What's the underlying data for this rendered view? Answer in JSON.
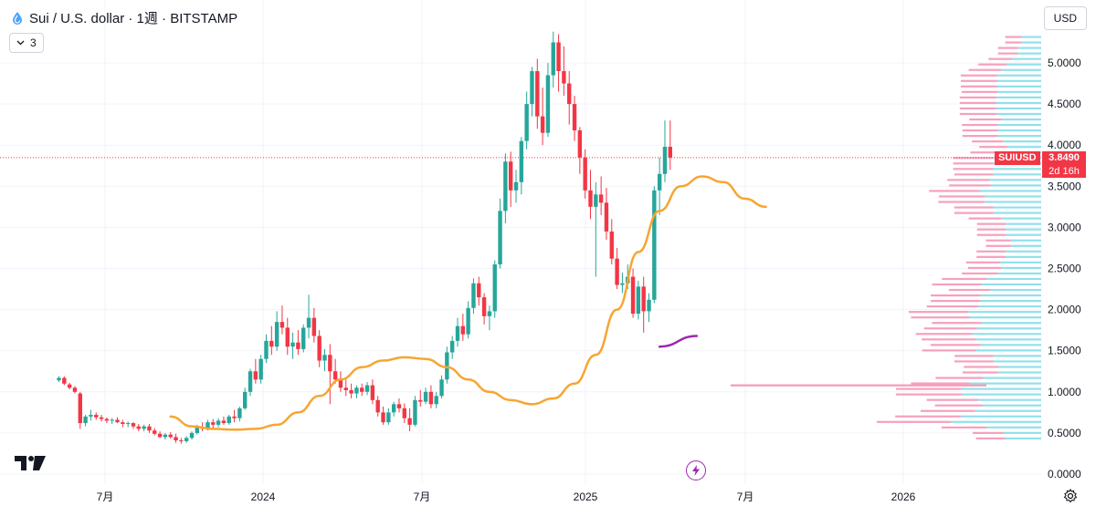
{
  "header": {
    "title": "Sui / U.S. dollar · 1週 · BITSTAMP",
    "indicator_count": "3"
  },
  "currency_button": "USD",
  "price_label": {
    "symbol": "SUIUSD",
    "price": "3.8490",
    "countdown": "2d 16h"
  },
  "colors": {
    "up": "#26a69a",
    "down": "#f23645",
    "ma": "#f7a532",
    "ma_short": "#9c27b0",
    "vp_up": "#7fdbe6",
    "vp_down": "#f48fb1",
    "price_line": "#f23645"
  },
  "chart_data": {
    "type": "candlestick",
    "y_axis": {
      "range": [
        0,
        5.35
      ],
      "ticks": [
        "0.0000",
        "0.5000",
        "1.0000",
        "1.5000",
        "2.0000",
        "2.5000",
        "3.0000",
        "3.5000",
        "4.0000",
        "4.5000",
        "5.0000"
      ]
    },
    "x_axis": {
      "labels": [
        "7月",
        "2024",
        "7月",
        "2025",
        "7月",
        "2026"
      ]
    },
    "current_price": 3.849,
    "candles": [
      [
        1.14,
        1.19,
        1.12,
        1.17
      ],
      [
        1.17,
        1.19,
        1.08,
        1.1
      ],
      [
        1.09,
        1.11,
        1.03,
        1.05
      ],
      [
        1.05,
        1.07,
        0.98,
        1.0
      ],
      [
        0.98,
        1.0,
        0.55,
        0.62
      ],
      [
        0.62,
        0.72,
        0.58,
        0.7
      ],
      [
        0.7,
        0.78,
        0.65,
        0.72
      ],
      [
        0.72,
        0.75,
        0.66,
        0.69
      ],
      [
        0.69,
        0.72,
        0.64,
        0.67
      ],
      [
        0.67,
        0.69,
        0.62,
        0.65
      ],
      [
        0.65,
        0.68,
        0.61,
        0.66
      ],
      [
        0.66,
        0.69,
        0.62,
        0.63
      ],
      [
        0.63,
        0.66,
        0.57,
        0.61
      ],
      [
        0.61,
        0.64,
        0.57,
        0.62
      ],
      [
        0.62,
        0.63,
        0.55,
        0.58
      ],
      [
        0.58,
        0.61,
        0.52,
        0.55
      ],
      [
        0.55,
        0.6,
        0.52,
        0.58
      ],
      [
        0.58,
        0.61,
        0.5,
        0.53
      ],
      [
        0.53,
        0.56,
        0.47,
        0.49
      ],
      [
        0.49,
        0.52,
        0.44,
        0.45
      ],
      [
        0.45,
        0.5,
        0.42,
        0.48
      ],
      [
        0.48,
        0.51,
        0.43,
        0.45
      ],
      [
        0.45,
        0.49,
        0.38,
        0.41
      ],
      [
        0.41,
        0.44,
        0.37,
        0.4
      ],
      [
        0.4,
        0.46,
        0.38,
        0.44
      ],
      [
        0.44,
        0.52,
        0.42,
        0.5
      ],
      [
        0.5,
        0.6,
        0.48,
        0.57
      ],
      [
        0.57,
        0.63,
        0.52,
        0.55
      ],
      [
        0.55,
        0.66,
        0.53,
        0.63
      ],
      [
        0.63,
        0.67,
        0.56,
        0.6
      ],
      [
        0.6,
        0.68,
        0.57,
        0.65
      ],
      [
        0.65,
        0.7,
        0.6,
        0.62
      ],
      [
        0.62,
        0.72,
        0.6,
        0.7
      ],
      [
        0.7,
        0.78,
        0.63,
        0.68
      ],
      [
        0.68,
        0.82,
        0.64,
        0.8
      ],
      [
        0.8,
        1.05,
        0.78,
        1.0
      ],
      [
        1.0,
        1.28,
        0.95,
        1.25
      ],
      [
        1.25,
        1.4,
        1.1,
        1.15
      ],
      [
        1.15,
        1.45,
        1.1,
        1.4
      ],
      [
        1.4,
        1.7,
        1.35,
        1.62
      ],
      [
        1.62,
        1.8,
        1.45,
        1.55
      ],
      [
        1.55,
        1.98,
        1.5,
        1.85
      ],
      [
        1.85,
        2.05,
        1.7,
        1.78
      ],
      [
        1.78,
        1.9,
        1.45,
        1.55
      ],
      [
        1.55,
        1.72,
        1.4,
        1.6
      ],
      [
        1.6,
        1.75,
        1.45,
        1.52
      ],
      [
        1.52,
        1.82,
        1.48,
        1.78
      ],
      [
        1.78,
        2.18,
        1.65,
        1.9
      ],
      [
        1.9,
        2.02,
        1.6,
        1.68
      ],
      [
        1.68,
        1.75,
        1.3,
        1.38
      ],
      [
        1.38,
        1.52,
        1.25,
        1.45
      ],
      [
        1.45,
        1.58,
        0.85,
        1.25
      ],
      [
        1.25,
        1.4,
        1.1,
        1.15
      ],
      [
        1.15,
        1.25,
        1.0,
        1.05
      ],
      [
        1.05,
        1.15,
        0.95,
        1.02
      ],
      [
        1.02,
        1.1,
        0.92,
        0.98
      ],
      [
        0.98,
        1.08,
        0.92,
        1.05
      ],
      [
        1.05,
        1.1,
        0.95,
        1.0
      ],
      [
        1.0,
        1.12,
        0.96,
        1.08
      ],
      [
        1.08,
        1.15,
        0.85,
        0.9
      ],
      [
        0.9,
        0.95,
        0.7,
        0.75
      ],
      [
        0.75,
        0.82,
        0.6,
        0.63
      ],
      [
        0.63,
        0.8,
        0.6,
        0.75
      ],
      [
        0.75,
        0.88,
        0.7,
        0.85
      ],
      [
        0.85,
        0.92,
        0.75,
        0.8
      ],
      [
        0.8,
        0.86,
        0.62,
        0.68
      ],
      [
        0.68,
        0.8,
        0.52,
        0.6
      ],
      [
        0.6,
        0.95,
        0.58,
        0.9
      ],
      [
        0.9,
        1.02,
        0.82,
        0.88
      ],
      [
        0.88,
        1.05,
        0.85,
        1.0
      ],
      [
        1.0,
        1.08,
        0.8,
        0.85
      ],
      [
        0.85,
        1.0,
        0.8,
        0.95
      ],
      [
        0.95,
        1.2,
        0.92,
        1.15
      ],
      [
        1.15,
        1.55,
        1.1,
        1.48
      ],
      [
        1.48,
        1.68,
        1.4,
        1.62
      ],
      [
        1.62,
        1.9,
        1.55,
        1.8
      ],
      [
        1.8,
        1.95,
        1.62,
        1.7
      ],
      [
        1.7,
        2.1,
        1.65,
        2.02
      ],
      [
        2.02,
        2.38,
        1.95,
        2.32
      ],
      [
        2.32,
        2.4,
        2.05,
        2.15
      ],
      [
        2.15,
        2.2,
        1.82,
        1.92
      ],
      [
        1.92,
        2.05,
        1.75,
        1.98
      ],
      [
        1.98,
        2.6,
        1.9,
        2.55
      ],
      [
        2.55,
        3.35,
        2.5,
        3.2
      ],
      [
        3.2,
        3.9,
        3.05,
        3.8
      ],
      [
        3.8,
        3.92,
        3.25,
        3.45
      ],
      [
        3.45,
        3.7,
        3.3,
        3.55
      ],
      [
        3.55,
        4.1,
        3.4,
        4.05
      ],
      [
        4.05,
        4.65,
        3.95,
        4.5
      ],
      [
        4.5,
        4.95,
        4.35,
        4.9
      ],
      [
        4.9,
        5.05,
        4.2,
        4.35
      ],
      [
        4.35,
        4.7,
        4.0,
        4.15
      ],
      [
        4.15,
        5.0,
        4.1,
        4.85
      ],
      [
        4.85,
        5.38,
        4.7,
        5.25
      ],
      [
        5.25,
        5.35,
        4.65,
        4.9
      ],
      [
        4.9,
        5.2,
        4.6,
        4.75
      ],
      [
        4.75,
        4.9,
        4.25,
        4.5
      ],
      [
        4.5,
        4.6,
        4.05,
        4.18
      ],
      [
        4.18,
        4.22,
        3.65,
        3.85
      ],
      [
        3.85,
        3.95,
        3.35,
        3.45
      ],
      [
        3.45,
        3.7,
        3.1,
        3.25
      ],
      [
        3.25,
        3.55,
        2.4,
        3.4
      ],
      [
        3.4,
        3.62,
        3.15,
        3.3
      ],
      [
        3.3,
        3.48,
        2.85,
        2.95
      ],
      [
        2.95,
        3.1,
        2.55,
        2.62
      ],
      [
        2.62,
        2.75,
        2.25,
        2.3
      ],
      [
        2.3,
        2.45,
        2.2,
        2.32
      ],
      [
        2.32,
        2.55,
        2.25,
        2.4
      ],
      [
        2.4,
        2.5,
        1.9,
        1.95
      ],
      [
        1.95,
        2.35,
        1.88,
        2.28
      ],
      [
        2.28,
        2.4,
        1.72,
        1.98
      ],
      [
        1.98,
        2.2,
        1.85,
        2.12
      ],
      [
        2.12,
        3.5,
        2.08,
        3.45
      ],
      [
        3.45,
        3.85,
        3.15,
        3.65
      ],
      [
        3.65,
        4.3,
        3.55,
        3.98
      ],
      [
        3.98,
        4.3,
        3.7,
        3.849
      ]
    ],
    "moving_average_long": [
      [
        0.7,
        0.58
      ],
      [
        0.58,
        0.55
      ],
      [
        0.55,
        0.54
      ],
      [
        0.54,
        0.55
      ],
      [
        0.55,
        0.6
      ],
      [
        0.6,
        0.75
      ],
      [
        0.75,
        0.95
      ],
      [
        0.95,
        1.15
      ],
      [
        1.15,
        1.3
      ],
      [
        1.3,
        1.38
      ],
      [
        1.38,
        1.42
      ],
      [
        1.42,
        1.4
      ],
      [
        1.4,
        1.3
      ],
      [
        1.3,
        1.15
      ],
      [
        1.15,
        1.0
      ],
      [
        1.0,
        0.9
      ],
      [
        0.9,
        0.85
      ],
      [
        0.85,
        0.92
      ],
      [
        0.92,
        1.1
      ],
      [
        1.1,
        1.45
      ],
      [
        1.45,
        2.0
      ],
      [
        2.0,
        2.7
      ],
      [
        2.7,
        3.2
      ],
      [
        3.2,
        3.5
      ],
      [
        3.5,
        3.62
      ],
      [
        3.62,
        3.55
      ],
      [
        3.55,
        3.35
      ],
      [
        3.35,
        3.25
      ]
    ],
    "moving_average_short": [
      [
        1.55,
        1.68
      ]
    ],
    "volume_profile_levels": 80
  }
}
